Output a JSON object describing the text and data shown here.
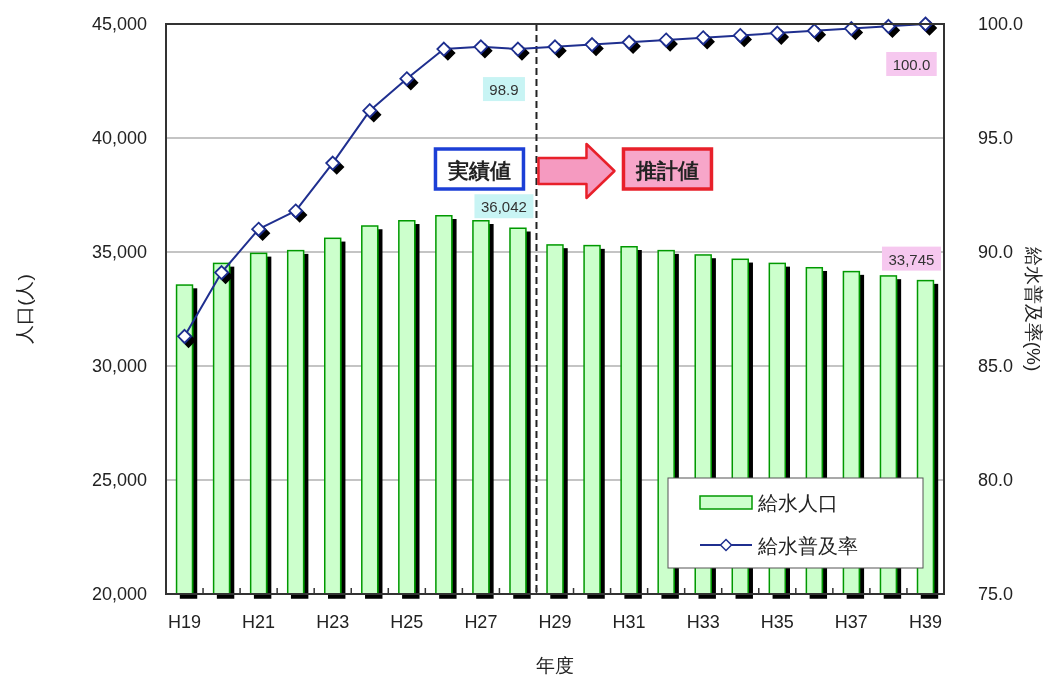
{
  "chart_data": {
    "type": "bar",
    "categories": [
      "H19",
      null,
      "H21",
      null,
      "H23",
      null,
      "H25",
      null,
      "H27",
      null,
      "H29",
      null,
      "H31",
      null,
      "H33",
      null,
      "H35",
      null,
      "H37",
      null,
      "H39"
    ],
    "ylim": [
      20000,
      45000
    ],
    "yticks": [
      {
        "value": 20000,
        "label": "20,000"
      },
      {
        "value": 25000,
        "label": "25,000"
      },
      {
        "value": 30000,
        "label": "30,000"
      },
      {
        "value": 35000,
        "label": "35,000"
      },
      {
        "value": 40000,
        "label": "40,000"
      },
      {
        "value": 45000,
        "label": "45,000"
      }
    ],
    "y2lim": [
      75,
      100
    ],
    "y2ticks": [
      {
        "value": 75,
        "label": "75.0"
      },
      {
        "value": 80,
        "label": "80.0"
      },
      {
        "value": 85,
        "label": "85.0"
      },
      {
        "value": 90,
        "label": "90.0"
      },
      {
        "value": 95,
        "label": "95.0"
      },
      {
        "value": 100,
        "label": "100.0"
      }
    ],
    "xlabel": "年度",
    "ylabel": "人口(人)",
    "y2label": "給水普及率(%)",
    "grid": "y",
    "legend": "bottom right",
    "marker": "diamond",
    "series": [
      {
        "name": "給水人口",
        "color": "#ccffcc",
        "values": [
          33550,
          34500,
          34940,
          35060,
          35600,
          36140,
          36370,
          36590,
          36370,
          36042,
          35310,
          35280,
          35230,
          35060,
          34870,
          34680,
          34500,
          34310,
          34140,
          33950,
          33745
        ],
        "value_labels": [
          null,
          null,
          null,
          null,
          null,
          null,
          null,
          null,
          null,
          "36,042",
          null,
          null,
          null,
          null,
          null,
          null,
          null,
          null,
          null,
          null,
          "33,745"
        ]
      },
      {
        "name": "給水普及率",
        "type": "line",
        "axis": "y2",
        "color": "#1f2f8f",
        "values": [
          86.3,
          89.1,
          91.0,
          91.8,
          93.9,
          96.2,
          97.6,
          98.9,
          99.0,
          98.9,
          99.0,
          99.1,
          99.2,
          99.3,
          99.4,
          99.5,
          99.6,
          99.7,
          99.8,
          99.9,
          100.0
        ],
        "value_labels": [
          null,
          null,
          null,
          null,
          null,
          null,
          null,
          null,
          null,
          "98.9",
          null,
          null,
          null,
          null,
          null,
          null,
          null,
          null,
          null,
          null,
          "100.0"
        ]
      }
    ],
    "annotations": [
      "実績値",
      "推計値"
    ]
  }
}
